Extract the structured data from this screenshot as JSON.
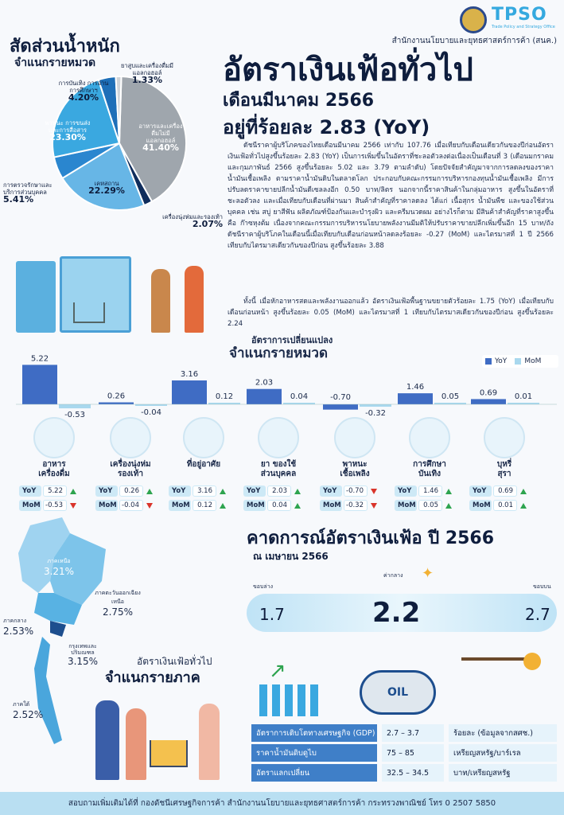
{
  "header": {
    "org": "สำนักงานนโยบายและยุทธศาสตร์การค้า (สนค.)",
    "logo_text": "TPSO",
    "logo_sub": "Trade Policy and Strategy Office"
  },
  "weights": {
    "title": "สัดส่วนน้ำหนัก",
    "subtitle": "จำแนกรายหมวด",
    "slices": [
      {
        "label": "อาหารและเครื่องดื่มไม่มีแอลกอฮอล์",
        "pct": "41.40%",
        "value": 41.4,
        "color": "#9fa6ad"
      },
      {
        "label": "เครื่องนุ่งห่มและรองเท้า",
        "pct": "2.07%",
        "value": 2.07,
        "color": "#0f2d5c"
      },
      {
        "label": "เคหสถาน",
        "pct": "22.29%",
        "value": 22.29,
        "color": "#67b6e6"
      },
      {
        "label": "การตรวจรักษาและบริการส่วนบุคคล",
        "pct": "5.41%",
        "value": 5.41,
        "color": "#2a86cf"
      },
      {
        "label": "พาหนะ การขนส่งและการสื่อสาร",
        "pct": "23.30%",
        "value": 23.3,
        "color": "#3aa8e0"
      },
      {
        "label": "การบันเทิง การอ่าน การศึกษาฯ",
        "pct": "4.20%",
        "value": 4.2,
        "color": "#1e6fb8"
      },
      {
        "label": "ยาสูบและเครื่องดื่มมีแอลกอฮอล์",
        "pct": "1.33%",
        "value": 1.33,
        "color": "#cfd4d9"
      }
    ]
  },
  "headline": {
    "line1": "อัตราเงินเฟ้อทั่วไป",
    "line2": "เดือนมีนาคม 2566",
    "line3": "อยู่ที่ร้อยละ 2.83 (YoY)"
  },
  "body": {
    "p1": "ดัชนีราคาผู้บริโภคของไทยเดือนมีนาคม 2566 เท่ากับ 107.76 เมื่อเทียบกับเดือนเดียวกันของปีก่อนอัตราเงินเฟ้อทั่วไปสูงขึ้นร้อยละ 2.83 (YoY) เป็นการเพิ่มขึ้นในอัตราที่ชะลอตัวลงต่อเนื่องเป็นเดือนที่ 3 (เดือนมกราคมและกุมภาพันธ์ 2566 สูงขึ้นร้อยละ 5.02 และ 3.79 ตามลำดับ) โดยปัจจัยสำคัญมาจากการลดลงของราคาน้ำมันเชื้อเพลิง ตามราคาน้ำมันดิบในตลาดโลก ประกอบกับคณะกรรมการบริหารกองทุนน้ำมันเชื้อเพลิง มีการปรับลดราคาขายปลีกน้ำมันดีเซลลงอีก 0.50 บาท/ลิตร นอกจากนี้ราคาสินค้าในกลุ่มอาหาร สูงขึ้นในอัตราที่ชะลอตัวลง และเมื่อเทียบกับเดือนที่ผ่านมา สินค้าสำคัญที่ราคาลดลง ได้แก่ เนื้อสุกร น้ำมันพืช และของใช้ส่วนบุคคล เช่น สบู่ ยาสีฟัน ผลิตภัณฑ์ป้องกันและบำรุงผิว และครีมนวดผม อย่างไรก็ตาม มีสินค้าสำคัญที่ราคาสูงขึ้น คือ ก๊าซหุงต้ม เนื่องจากคณะกรรมการบริหารนโยบายพลังงานมีมติให้ปรับราคาขายปลีกเพิ่มขึ้นอีก 15 บาท/ถัง ดัชนีราคาผู้บริโภคในเดือนนี้เมื่อเทียบกับเดือนก่อนหน้าลดลงร้อยละ -0.27 (MoM) และไตรมาสที่ 1 ปี 2566 เทียบกับไตรมาสเดียวกันของปีก่อน สูงขึ้นร้อยละ 3.88",
    "p2": "ทั้งนี้ เมื่อหักอาหารสดและพลังงานออกแล้ว อัตราเงินเฟ้อพื้นฐานขยายตัวร้อยละ 1.75 (YoY) เมื่อเทียบกับเดือนก่อนหน้า สูงขึ้นร้อยละ 0.05 (MoM) และไตรมาสที่ 1 เทียบกับไตรมาสเดียวกันของปีก่อน สูงขึ้นร้อยละ 2.24"
  },
  "change": {
    "title": "อัตราการเปลี่ยนแปลง",
    "subtitle": "จำแนกรายหมวด",
    "legend_yoy": "YoY",
    "legend_mom": "MoM",
    "label_yoy": "YoY",
    "label_mom": "MoM"
  },
  "chart_data": {
    "type": "bar",
    "categories": [
      "อาหารเครื่องดื่ม",
      "เครื่องนุ่งห่มรองเท้า",
      "ที่อยู่อาศัย",
      "ยา ของใช้ส่วนบุคคล",
      "พาหนะเชื้อเพลิง",
      "การศึกษาบันเทิง",
      "บุหรี่สุรา"
    ],
    "series": [
      {
        "name": "YoY",
        "values": [
          5.22,
          0.26,
          3.16,
          2.03,
          -0.7,
          1.46,
          0.69
        ],
        "color": "#3f6cc4"
      },
      {
        "name": "MoM",
        "values": [
          -0.53,
          -0.04,
          0.12,
          0.04,
          -0.32,
          0.05,
          0.01
        ],
        "color": "#a9d8ee"
      }
    ],
    "labels_yoy": [
      "5.22",
      "0.26",
      "3.16",
      "2.03",
      "-0.70",
      "1.46",
      "0.69"
    ],
    "labels_mom": [
      "-0.53",
      "-0.04",
      "0.12",
      "0.04",
      "-0.32",
      "0.05",
      "0.01"
    ],
    "cat_line1": [
      "อาหาร",
      "เครื่องนุ่งห่ม",
      "ที่อยู่อาศัย",
      "ยา ของใช้",
      "พาหนะ",
      "การศึกษา",
      "บุหรี่"
    ],
    "cat_line2": [
      "เครื่องดื่ม",
      "รองเท้า",
      "",
      "ส่วนบุคคล",
      "เชื้อเพลิง",
      "บันเทิง",
      "สุรา"
    ],
    "icons": [
      "food-icon",
      "clothing-icon",
      "house-icon",
      "medicine-icon",
      "fuel-pump-icon",
      "education-icon",
      "alcohol-icon"
    ],
    "legend": "top-right"
  },
  "forecast": {
    "title": "คาดการณ์อัตราเงินเฟ้อ ปี 2566",
    "asof": "ณ เมษายน 2566",
    "low_label": "ขอบล่าง",
    "mid_label": "ค่ากลาง",
    "high_label": "ขอบบน",
    "low": "1.7",
    "mid": "2.2",
    "high": "2.7"
  },
  "regions": {
    "title": "อัตราเงินเฟ้อทั่วไป",
    "subtitle": "จำแนกรายภาค",
    "items": [
      {
        "name": "ภาคเหนือ",
        "pct": "3.21%"
      },
      {
        "name": "ภาคตะวันออกเฉียงเหนือ",
        "pct": "2.75%"
      },
      {
        "name": "ภาคกลาง",
        "pct": "2.53%"
      },
      {
        "name": "กรุงเทพและปริมณฑล",
        "pct": "3.15%"
      },
      {
        "name": "ภาคใต้",
        "pct": "2.52%"
      }
    ]
  },
  "assumptions": {
    "oil_label": "OIL",
    "rows": [
      {
        "name": "อัตราการเติบโตทางเศรษฐกิจ (GDP)",
        "value": "2.7 – 3.7",
        "unit": "ร้อยละ (ข้อมูลจากสศช.)"
      },
      {
        "name": "ราคาน้ำมันดิบดูไบ",
        "value": "75 – 85",
        "unit": "เหรียญสหรัฐ/บาร์เรล"
      },
      {
        "name": "อัตราแลกเปลี่ยน",
        "value": "32.5 – 34.5",
        "unit": "บาท/เหรียญสหรัฐ"
      }
    ]
  },
  "footer": "สอบถามเพิ่มเติมได้ที่ กองดัชนีเศรษฐกิจการค้า สำนักงานนโยบายและยุทธศาสตร์การค้า กระทรวงพาณิชย์ โทร 0 2507 5850",
  "colors": {
    "accent": "#3aa8e0",
    "navy": "#0e1d3d",
    "yoy": "#3f6cc4",
    "mom": "#a9d8ee",
    "up": "#2ea44f",
    "down": "#d9342b"
  }
}
